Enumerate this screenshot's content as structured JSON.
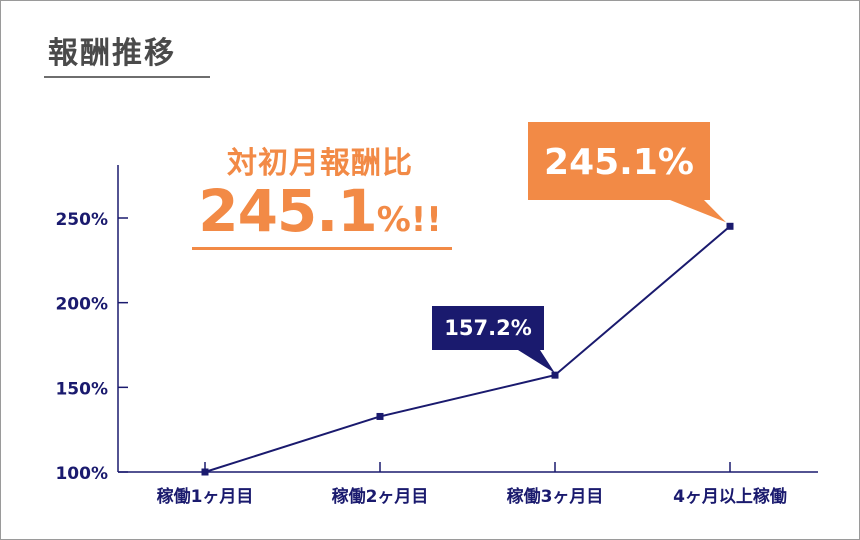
{
  "page": {
    "title": "報酬推移"
  },
  "headline": {
    "label": "対初月報酬比",
    "value": "245.1",
    "unit": "%!!"
  },
  "colors": {
    "line": "#1a1a6e",
    "axis": "#1a1a6e",
    "accent": "#f28a46",
    "callout_dark": "#1a1a6e",
    "text": "#4a4a4a"
  },
  "chart_data": {
    "type": "line",
    "categories": [
      "稼働1ヶ月目",
      "稼働2ヶ月目",
      "稼働3ヶ月目",
      "4ヶ月以上稼働"
    ],
    "series": [
      {
        "values": [
          100,
          132.8,
          157.2,
          245.1
        ]
      }
    ],
    "ylim": [
      100,
      250
    ],
    "yticks": [
      100,
      150,
      200,
      250
    ],
    "ytick_labels": [
      "100%",
      "150%",
      "200%",
      "250%"
    ],
    "annotations": [
      {
        "category_index": 2,
        "text": "157.2%",
        "style": "dark"
      },
      {
        "category_index": 3,
        "text": "245.1%",
        "style": "accent"
      }
    ],
    "grid": false
  }
}
